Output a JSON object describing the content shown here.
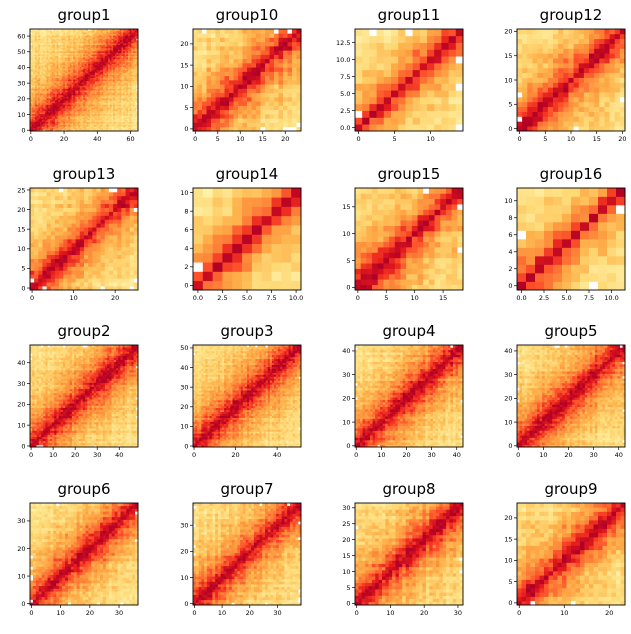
{
  "chart_data": [
    {
      "type": "heatmap",
      "title": "group1",
      "n": 65,
      "xlim": [
        0,
        65
      ],
      "ylim": [
        0,
        65
      ],
      "xticks": [
        0,
        20,
        40,
        60
      ],
      "yticks": [
        0,
        10,
        20,
        30,
        40,
        50,
        60
      ]
    },
    {
      "type": "heatmap",
      "title": "group10",
      "n": 24,
      "xlim": [
        0,
        24
      ],
      "ylim": [
        0,
        24
      ],
      "xticks": [
        0,
        5,
        10,
        15,
        20
      ],
      "yticks": [
        0,
        5,
        10,
        15,
        20
      ]
    },
    {
      "type": "heatmap",
      "title": "group11",
      "n": 15,
      "xlim": [
        0,
        15
      ],
      "ylim": [
        0,
        15
      ],
      "xticks": [
        0,
        5,
        10
      ],
      "yticks": [
        0.0,
        2.5,
        5.0,
        7.5,
        10.0,
        12.5
      ]
    },
    {
      "type": "heatmap",
      "title": "group12",
      "n": 21,
      "xlim": [
        0,
        21
      ],
      "ylim": [
        0,
        21
      ],
      "xticks": [
        0,
        5,
        10,
        15,
        20
      ],
      "yticks": [
        0,
        5,
        10,
        15,
        20
      ]
    },
    {
      "type": "heatmap",
      "title": "group13",
      "n": 26,
      "xlim": [
        0,
        26
      ],
      "ylim": [
        0,
        26
      ],
      "xticks": [
        0,
        10,
        20
      ],
      "yticks": [
        0,
        5,
        10,
        15,
        20,
        25
      ]
    },
    {
      "type": "heatmap",
      "title": "group14",
      "n": 11,
      "xlim": [
        0,
        11
      ],
      "ylim": [
        0,
        11
      ],
      "xticks": [
        0.0,
        2.5,
        5.0,
        7.5,
        10.0
      ],
      "yticks": [
        0,
        2,
        4,
        6,
        8,
        10
      ]
    },
    {
      "type": "heatmap",
      "title": "group15",
      "n": 19,
      "xlim": [
        0,
        19
      ],
      "ylim": [
        0,
        19
      ],
      "xticks": [
        0,
        5,
        10,
        15
      ],
      "yticks": [
        0,
        5,
        10,
        15
      ]
    },
    {
      "type": "heatmap",
      "title": "group16",
      "n": 12,
      "xlim": [
        0,
        12
      ],
      "ylim": [
        0,
        12
      ],
      "xticks": [
        0.0,
        2.5,
        5.0,
        7.5,
        10.0
      ],
      "yticks": [
        0,
        2,
        4,
        6,
        8,
        10
      ]
    },
    {
      "type": "heatmap",
      "title": "group2",
      "n": 49,
      "xlim": [
        0,
        49
      ],
      "ylim": [
        0,
        49
      ],
      "xticks": [
        0,
        10,
        20,
        30,
        40
      ],
      "yticks": [
        0,
        10,
        20,
        30,
        40
      ]
    },
    {
      "type": "heatmap",
      "title": "group3",
      "n": 52,
      "xlim": [
        0,
        52
      ],
      "ylim": [
        0,
        52
      ],
      "xticks": [
        0,
        20,
        40
      ],
      "yticks": [
        0,
        10,
        20,
        30,
        40,
        50
      ]
    },
    {
      "type": "heatmap",
      "title": "group4",
      "n": 43,
      "xlim": [
        0,
        43
      ],
      "ylim": [
        0,
        43
      ],
      "xticks": [
        0,
        10,
        20,
        30,
        40
      ],
      "yticks": [
        0,
        10,
        20,
        30,
        40
      ]
    },
    {
      "type": "heatmap",
      "title": "group5",
      "n": 43,
      "xlim": [
        0,
        43
      ],
      "ylim": [
        0,
        43
      ],
      "xticks": [
        0,
        10,
        20,
        30,
        40
      ],
      "yticks": [
        0,
        10,
        20,
        30,
        40
      ]
    },
    {
      "type": "heatmap",
      "title": "group6",
      "n": 37,
      "xlim": [
        0,
        37
      ],
      "ylim": [
        0,
        37
      ],
      "xticks": [
        0,
        10,
        20,
        30
      ],
      "yticks": [
        0,
        10,
        20,
        30
      ]
    },
    {
      "type": "heatmap",
      "title": "group7",
      "n": 39,
      "xlim": [
        0,
        39
      ],
      "ylim": [
        0,
        39
      ],
      "xticks": [
        0,
        10,
        20,
        30
      ],
      "yticks": [
        0,
        10,
        20,
        30
      ]
    },
    {
      "type": "heatmap",
      "title": "group8",
      "n": 32,
      "xlim": [
        0,
        32
      ],
      "ylim": [
        0,
        32
      ],
      "xticks": [
        0,
        10,
        20,
        30
      ],
      "yticks": [
        0,
        5,
        10,
        15,
        20,
        25,
        30
      ]
    },
    {
      "type": "heatmap",
      "title": "group9",
      "n": 24,
      "xlim": [
        0,
        24
      ],
      "ylim": [
        0,
        24
      ],
      "xticks": [
        0,
        10,
        20
      ],
      "yticks": [
        0,
        5,
        10,
        15,
        20
      ]
    }
  ]
}
